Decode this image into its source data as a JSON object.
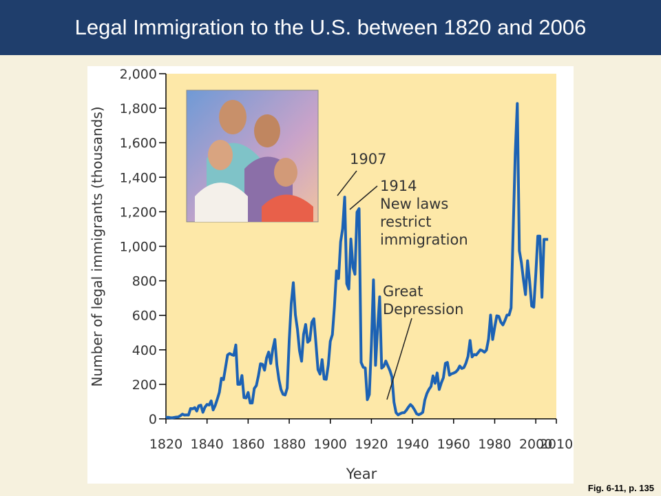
{
  "header": {
    "title": "Legal Immigration to the U.S. between 1820 and 2006"
  },
  "chart_data": {
    "type": "line",
    "x_label": "Year",
    "y_label": "Number of legal immigrants (thousands)",
    "xlim": [
      1820,
      2010
    ],
    "xticks": [
      1820,
      1840,
      1860,
      1880,
      1900,
      1920,
      1940,
      1960,
      1980,
      2000,
      2010
    ],
    "ylim": [
      0,
      2000
    ],
    "yticks": [
      0,
      200,
      400,
      600,
      800,
      {
        "value": 1000,
        "label": "1,000"
      },
      {
        "value": 1200,
        "label": "1,200"
      },
      {
        "value": 1400,
        "label": "1,400"
      },
      {
        "value": 1600,
        "label": "1,600"
      },
      {
        "value": 1800,
        "label": "1,800"
      },
      {
        "value": 2000,
        "label": "2,000"
      }
    ],
    "grid": false,
    "color": "#1c62b4",
    "x": [
      1820,
      1821,
      1822,
      1823,
      1824,
      1825,
      1826,
      1827,
      1828,
      1829,
      1830,
      1831,
      1832,
      1833,
      1834,
      1835,
      1836,
      1837,
      1838,
      1839,
      1840,
      1841,
      1842,
      1843,
      1844,
      1845,
      1846,
      1847,
      1848,
      1849,
      1850,
      1851,
      1852,
      1853,
      1854,
      1855,
      1856,
      1857,
      1858,
      1859,
      1860,
      1861,
      1862,
      1863,
      1864,
      1865,
      1866,
      1867,
      1868,
      1869,
      1870,
      1871,
      1872,
      1873,
      1874,
      1875,
      1876,
      1877,
      1878,
      1879,
      1880,
      1881,
      1882,
      1883,
      1884,
      1885,
      1886,
      1887,
      1888,
      1889,
      1890,
      1891,
      1892,
      1893,
      1894,
      1895,
      1896,
      1897,
      1898,
      1899,
      1900,
      1901,
      1902,
      1903,
      1904,
      1905,
      1906,
      1907,
      1908,
      1909,
      1910,
      1911,
      1912,
      1913,
      1914,
      1915,
      1916,
      1917,
      1918,
      1919,
      1920,
      1921,
      1922,
      1923,
      1924,
      1925,
      1926,
      1927,
      1928,
      1929,
      1930,
      1931,
      1932,
      1933,
      1934,
      1935,
      1936,
      1937,
      1938,
      1939,
      1940,
      1941,
      1942,
      1943,
      1944,
      1945,
      1946,
      1947,
      1948,
      1949,
      1950,
      1951,
      1952,
      1953,
      1954,
      1955,
      1956,
      1957,
      1958,
      1959,
      1960,
      1961,
      1962,
      1963,
      1964,
      1965,
      1966,
      1967,
      1968,
      1969,
      1970,
      1971,
      1972,
      1973,
      1974,
      1975,
      1976,
      1977,
      1978,
      1979,
      1980,
      1981,
      1982,
      1983,
      1984,
      1985,
      1986,
      1987,
      1988,
      1989,
      1990,
      1991,
      1992,
      1993,
      1994,
      1995,
      1996,
      1997,
      1998,
      1999,
      2000,
      2001,
      2002,
      2003,
      2004,
      2005,
      2006
    ],
    "values": [
      8,
      9,
      7,
      6,
      8,
      10,
      11,
      18,
      27,
      22,
      23,
      22,
      60,
      58,
      65,
      45,
      76,
      79,
      38,
      68,
      84,
      80,
      104,
      52,
      78,
      114,
      154,
      235,
      227,
      297,
      370,
      379,
      372,
      368,
      428,
      200,
      200,
      251,
      123,
      121,
      153,
      92,
      92,
      176,
      193,
      249,
      319,
      316,
      282,
      353,
      387,
      321,
      405,
      460,
      313,
      227,
      170,
      142,
      138,
      178,
      457,
      669,
      789,
      603,
      519,
      395,
      334,
      490,
      547,
      444,
      455,
      560,
      580,
      440,
      286,
      259,
      343,
      231,
      229,
      312,
      449,
      488,
      649,
      857,
      813,
      1026,
      1101,
      1285,
      783,
      752,
      1042,
      879,
      838,
      1198,
      1218,
      327,
      299,
      295,
      111,
      141,
      430,
      805,
      310,
      523,
      707,
      294,
      304,
      335,
      307,
      280,
      242,
      97,
      36,
      23,
      30,
      35,
      36,
      50,
      68,
      83,
      71,
      52,
      29,
      24,
      29,
      38,
      109,
      147,
      171,
      188,
      249,
      206,
      266,
      170,
      208,
      238,
      322,
      327,
      253,
      261,
      265,
      271,
      284,
      306,
      292,
      297,
      323,
      362,
      454,
      359,
      373,
      370,
      385,
      400,
      395,
      386,
      399,
      462,
      601,
      460,
      531,
      597,
      594,
      560,
      544,
      570,
      602,
      602,
      643,
      1091,
      1536,
      1827,
      974,
      904,
      804,
      720,
      916,
      798,
      654,
      647,
      841,
      1059,
      1059,
      704,
      1040,
      1040,
      1040
    ],
    "annotations": [
      {
        "lines": [
          "1907"
        ]
      },
      {
        "lines": [
          "1914",
          "New laws",
          "restrict",
          "immigration"
        ]
      },
      {
        "lines": [
          "Great",
          "Depression"
        ]
      }
    ]
  },
  "footer": {
    "caption": "Fig. 6-11, p. 135"
  }
}
